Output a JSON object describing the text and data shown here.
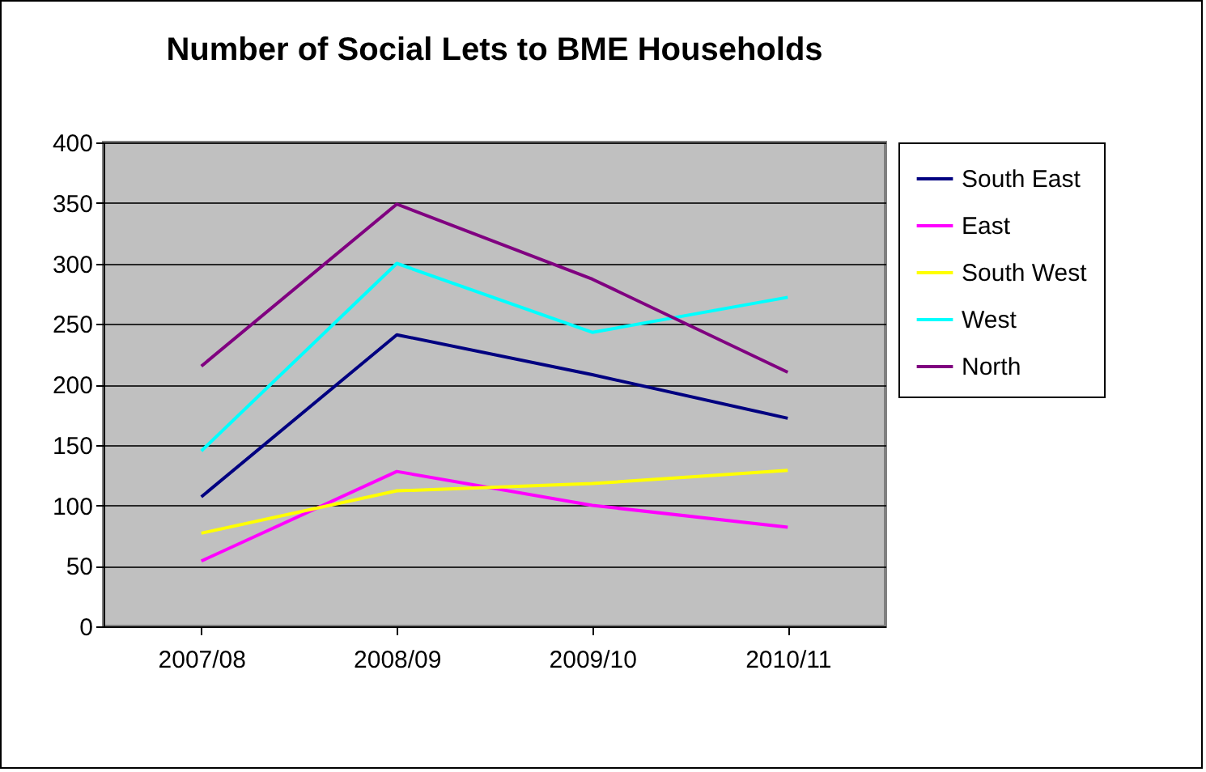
{
  "chart_data": {
    "type": "line",
    "title": "Number of Social Lets to BME Households",
    "categories": [
      "2007/08",
      "2008/09",
      "2009/10",
      "2010/11"
    ],
    "series": [
      {
        "name": "South East",
        "color": "#000080",
        "values": [
          107,
          241,
          208,
          172
        ]
      },
      {
        "name": "East",
        "color": "#ff00ff",
        "values": [
          54,
          128,
          100,
          82
        ]
      },
      {
        "name": "South West",
        "color": "#ffff00",
        "values": [
          77,
          112,
          118,
          129
        ]
      },
      {
        "name": "West",
        "color": "#00ffff",
        "values": [
          145,
          300,
          243,
          272
        ]
      },
      {
        "name": "North",
        "color": "#800080",
        "values": [
          215,
          349,
          287,
          210
        ]
      }
    ],
    "ylim": [
      0,
      400
    ],
    "yticks": [
      0,
      50,
      100,
      150,
      200,
      250,
      300,
      350,
      400
    ],
    "grid": "y",
    "legend": "right",
    "marker": "none",
    "line_style": "solid"
  }
}
